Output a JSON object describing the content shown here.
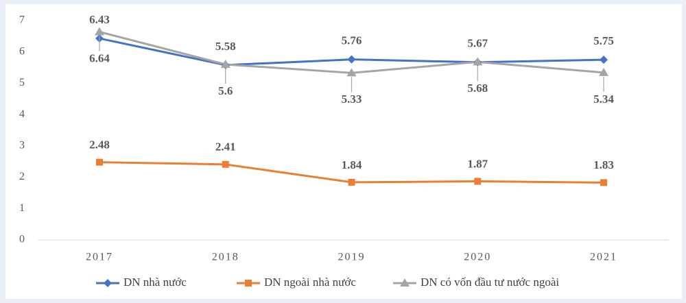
{
  "chart_data": {
    "type": "line",
    "categories": [
      "2017",
      "2018",
      "2019",
      "2020",
      "2021"
    ],
    "series": [
      {
        "name": "DN nhà nước",
        "color": "#4472c4",
        "marker": "diamond",
        "values": [
          6.43,
          5.58,
          5.76,
          5.67,
          5.75
        ]
      },
      {
        "name": "DN ngoài nhà nước",
        "color": "#ed7d31",
        "marker": "square",
        "values": [
          2.48,
          2.41,
          1.84,
          1.87,
          1.83
        ]
      },
      {
        "name": "DN có vốn đầu tư nước ngoài",
        "color": "#a5a5a5",
        "marker": "triangle",
        "values": [
          6.64,
          5.6,
          5.33,
          5.68,
          5.34
        ]
      }
    ],
    "ylim": [
      0,
      7
    ],
    "yticks": [
      0,
      1,
      2,
      3,
      4,
      5,
      6,
      7
    ],
    "grid": false,
    "legend": "bottom"
  }
}
